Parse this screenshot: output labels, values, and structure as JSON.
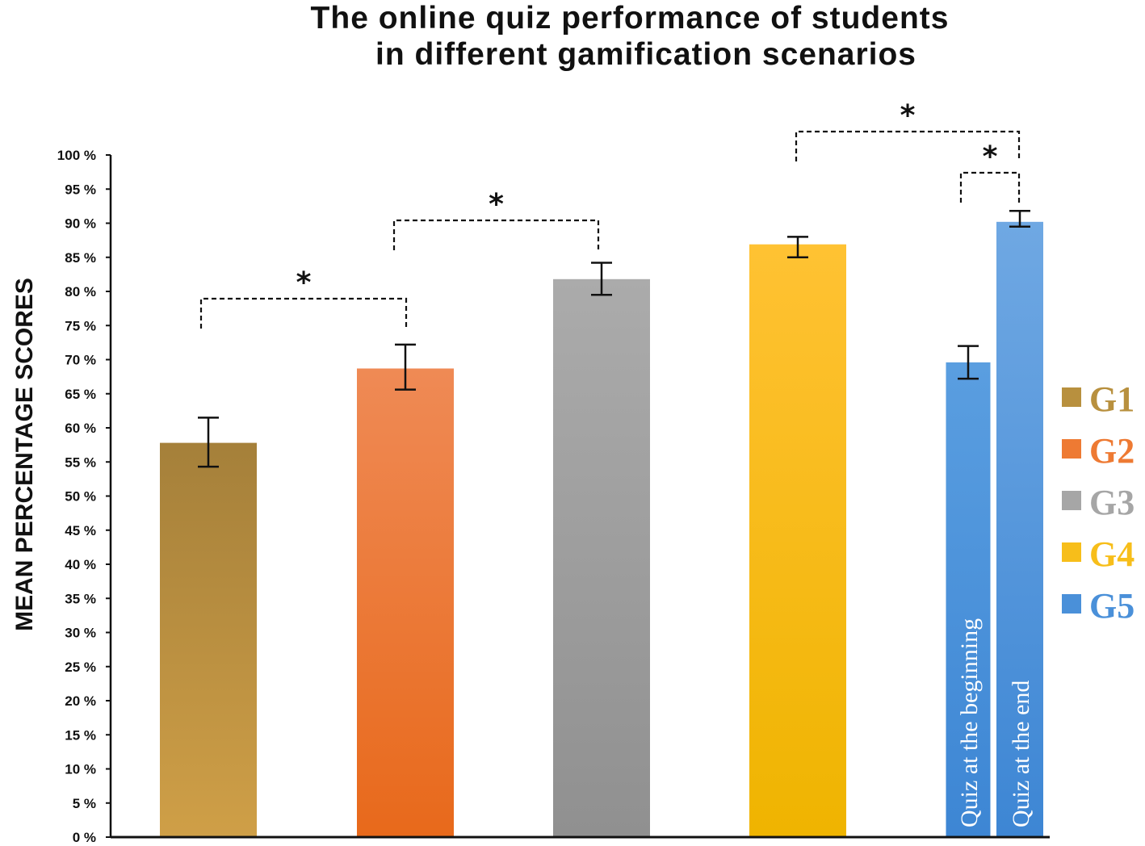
{
  "chart_data": {
    "type": "bar",
    "title_line1": "The online quiz performance of students",
    "title_line2": "in different gamification scenarios",
    "ylabel": "MEAN PERCENTAGE SCORES",
    "ylim": [
      0,
      100
    ],
    "y_ticks": [
      "0 %",
      "5 %",
      "10 %",
      "15 %",
      "20 %",
      "25 %",
      "30 %",
      "35 %",
      "40 %",
      "45 %",
      "50 %",
      "55 %",
      "60 %",
      "65 %",
      "70 %",
      "75 %",
      "80 %",
      "85 %",
      "90 %",
      "95 %",
      "100 %"
    ],
    "bars": [
      {
        "group": "G1",
        "value": 57.8,
        "err_low": 54.3,
        "err_high": 61.5,
        "color_top": "#a5803a",
        "color_bottom": "#cf9f47",
        "label": ""
      },
      {
        "group": "G2",
        "value": 68.7,
        "err_low": 65.6,
        "err_high": 72.2,
        "color_top": "#ef8a55",
        "color_bottom": "#e8691b",
        "label": ""
      },
      {
        "group": "G3",
        "value": 81.8,
        "err_low": 79.5,
        "err_high": 84.2,
        "color_top": "#ababab",
        "color_bottom": "#909090",
        "label": ""
      },
      {
        "group": "G4",
        "value": 86.9,
        "err_low": 85.0,
        "err_high": 88.0,
        "color_top": "#ffc233",
        "color_bottom": "#efb400",
        "label": ""
      },
      {
        "group": "G5",
        "value": 69.6,
        "err_low": 67.2,
        "err_high": 72.0,
        "color_top": "#5a9ee0",
        "color_bottom": "#3d86d4",
        "label": "Quiz at the beginning"
      },
      {
        "group": "G5",
        "value": 90.2,
        "err_low": 89.5,
        "err_high": 91.8,
        "color_top": "#6fa8e3",
        "color_bottom": "#3d86d4",
        "label": "Quiz at the end"
      }
    ],
    "significance": [
      {
        "from_bar": 0,
        "to_bar": 1,
        "label": "*"
      },
      {
        "from_bar": 1,
        "to_bar": 2,
        "label": "*"
      },
      {
        "from_bar": 3,
        "to_bar": 5,
        "label": "*"
      },
      {
        "from_bar": 4,
        "to_bar": 5,
        "label": "*"
      }
    ],
    "legend": [
      {
        "label": "G1",
        "color": "#b8903e"
      },
      {
        "label": "G2",
        "color": "#ee7a33"
      },
      {
        "label": "G3",
        "color": "#a6a6a6"
      },
      {
        "label": "G4",
        "color": "#f7be1a"
      },
      {
        "label": "G5",
        "color": "#4a90d9"
      }
    ],
    "legend_position": "right"
  }
}
